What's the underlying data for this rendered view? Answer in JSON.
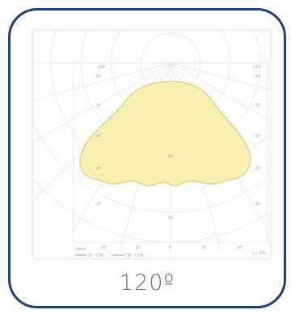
{
  "diagram": {
    "type": "polar-light-distribution",
    "angle_labels_top": [
      "120°",
      "120°"
    ],
    "angle_labels_left": [
      "90°",
      "75°",
      "60°",
      "45°",
      "30°"
    ],
    "angle_labels_right": [
      "90°",
      "75°",
      "60°",
      "45°",
      "30°"
    ],
    "angle_labels_bottom": [
      "30°",
      "15°",
      "0°",
      "15°",
      "30°"
    ],
    "radial_labels": [
      "100",
      "200"
    ],
    "units_label": "cd/klm",
    "efficiency_label": "η = 97%",
    "legend": [
      {
        "label": "C0 - C180",
        "color": "#e07a6a"
      },
      {
        "label": "C90 - C270",
        "color": "#8aa4d6"
      }
    ],
    "fill_color": "#f7f0b0",
    "outline_color": "#d8c98a"
  },
  "caption": "120º"
}
